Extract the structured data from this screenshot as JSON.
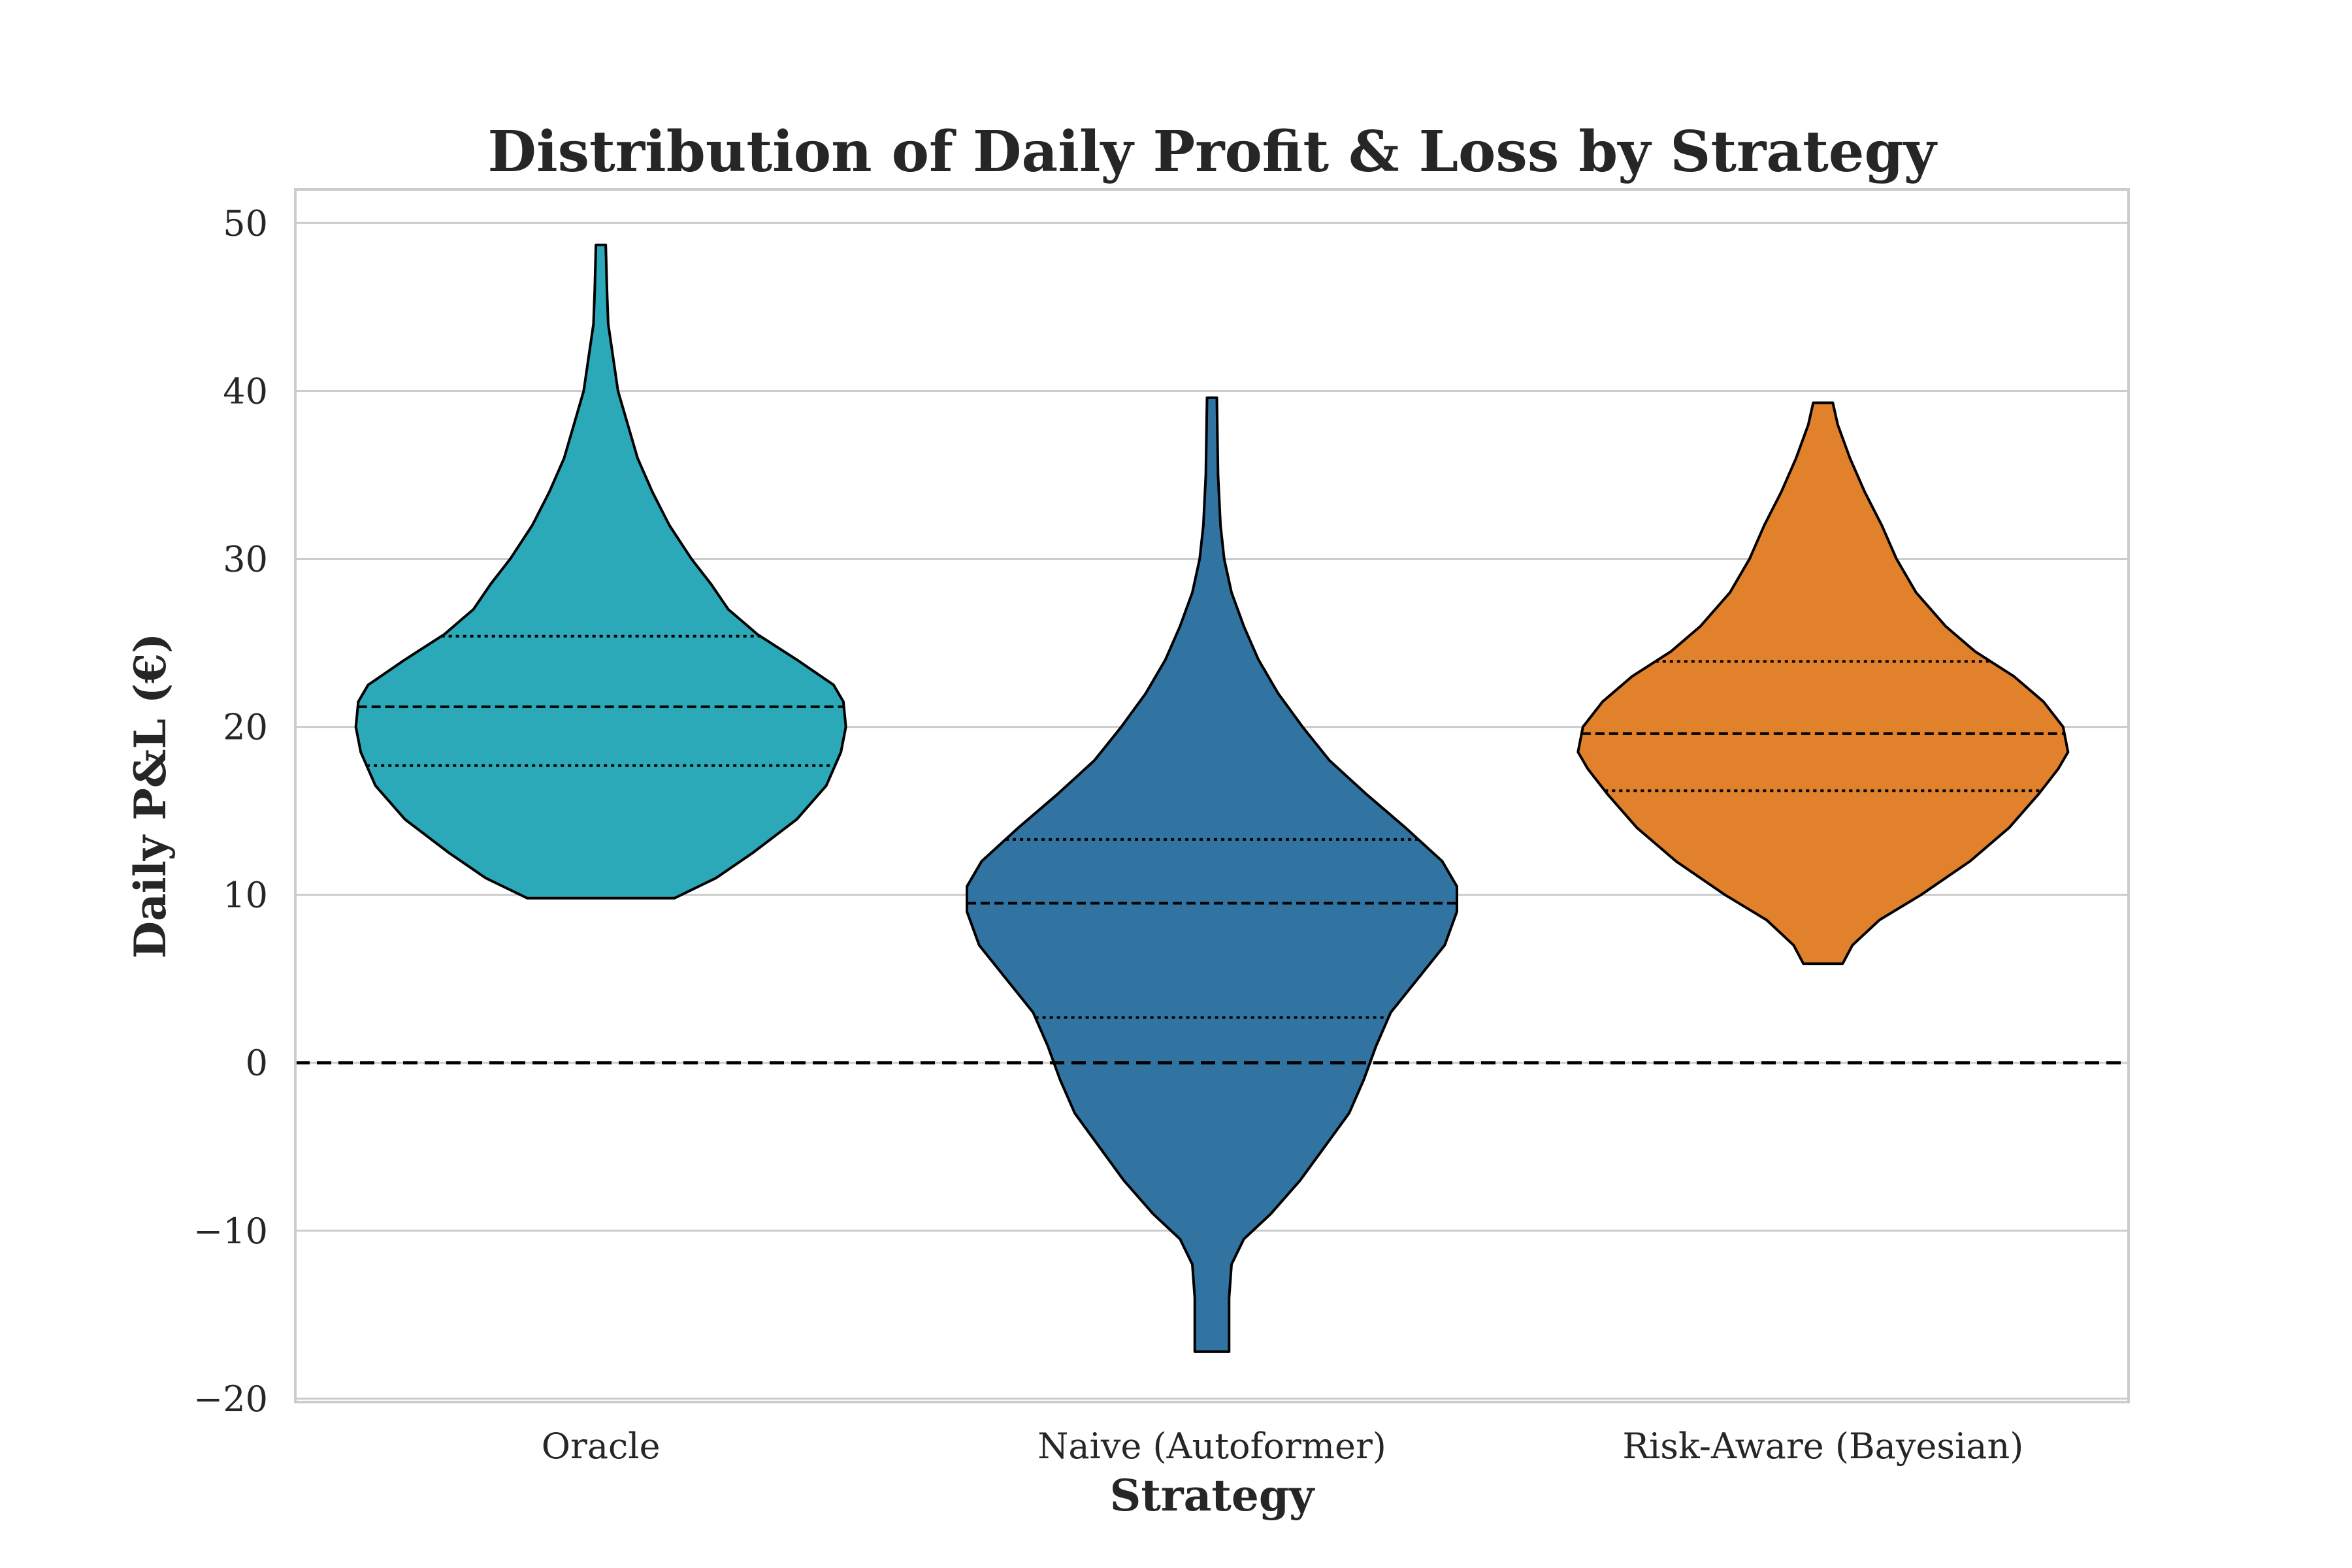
{
  "chart_data": {
    "type": "violin",
    "title": "Distribution of Daily Profit & Loss by Strategy",
    "xlabel": "Strategy",
    "ylabel": "Daily P&L (€)",
    "ylim": [
      -20.2,
      52
    ],
    "yticks": [
      -20,
      -10,
      0,
      10,
      20,
      30,
      40,
      50
    ],
    "ytick_labels": [
      "−20",
      "−10",
      "0",
      "10",
      "20",
      "30",
      "40",
      "50"
    ],
    "grid": "horizontal",
    "reference_line": {
      "y": 0,
      "style": "dashed"
    },
    "categories": [
      "Oracle",
      "Naive (Autoformer)",
      "Risk-Aware (Bayesian)"
    ],
    "colors": [
      "#2ca9b8",
      "#3274a1",
      "#e1812c"
    ],
    "series": [
      {
        "min": 9.8,
        "max": 48.7,
        "q1": 17.7,
        "median": 21.2,
        "q3": 25.4,
        "profile": [
          [
            9.8,
            0.3
          ],
          [
            11,
            0.47
          ],
          [
            12.5,
            0.62
          ],
          [
            14.5,
            0.8
          ],
          [
            16.5,
            0.92
          ],
          [
            18.5,
            0.98
          ],
          [
            20,
            1.0
          ],
          [
            21.5,
            0.99
          ],
          [
            22.5,
            0.95
          ],
          [
            24,
            0.8
          ],
          [
            25.5,
            0.64
          ],
          [
            27,
            0.52
          ],
          [
            28.5,
            0.45
          ],
          [
            30,
            0.37
          ],
          [
            32,
            0.28
          ],
          [
            34,
            0.21
          ],
          [
            36,
            0.15
          ],
          [
            38,
            0.11
          ],
          [
            40,
            0.07
          ],
          [
            42,
            0.05
          ],
          [
            44,
            0.03
          ],
          [
            46,
            0.025
          ],
          [
            48.7,
            0.02
          ]
        ]
      },
      {
        "min": -17.2,
        "max": 39.6,
        "q1": 2.7,
        "median": 9.5,
        "q3": 13.3,
        "profile": [
          [
            -17.2,
            0.07
          ],
          [
            -16,
            0.07
          ],
          [
            -14,
            0.07
          ],
          [
            -12,
            0.08
          ],
          [
            -10.5,
            0.13
          ],
          [
            -9,
            0.24
          ],
          [
            -7,
            0.36
          ],
          [
            -5,
            0.46
          ],
          [
            -3,
            0.56
          ],
          [
            -1,
            0.62
          ],
          [
            1,
            0.67
          ],
          [
            3,
            0.73
          ],
          [
            5,
            0.84
          ],
          [
            7,
            0.95
          ],
          [
            9,
            1.0
          ],
          [
            10.5,
            1.0
          ],
          [
            12,
            0.94
          ],
          [
            14,
            0.79
          ],
          [
            16,
            0.63
          ],
          [
            18,
            0.48
          ],
          [
            20,
            0.37
          ],
          [
            22,
            0.27
          ],
          [
            24,
            0.19
          ],
          [
            26,
            0.13
          ],
          [
            28,
            0.08
          ],
          [
            30,
            0.05
          ],
          [
            32,
            0.035
          ],
          [
            35,
            0.025
          ],
          [
            39.6,
            0.02
          ]
        ]
      },
      {
        "min": 5.9,
        "max": 39.3,
        "q1": 16.2,
        "median": 19.6,
        "q3": 23.9,
        "profile": [
          [
            5.9,
            0.08
          ],
          [
            7,
            0.12
          ],
          [
            8.5,
            0.23
          ],
          [
            10,
            0.4
          ],
          [
            12,
            0.6
          ],
          [
            14,
            0.76
          ],
          [
            16,
            0.88
          ],
          [
            17.5,
            0.96
          ],
          [
            18.5,
            1.0
          ],
          [
            20,
            0.98
          ],
          [
            21.5,
            0.9
          ],
          [
            23,
            0.78
          ],
          [
            24.5,
            0.62
          ],
          [
            26,
            0.5
          ],
          [
            28,
            0.38
          ],
          [
            30,
            0.3
          ],
          [
            32,
            0.24
          ],
          [
            34,
            0.17
          ],
          [
            36,
            0.11
          ],
          [
            38,
            0.06
          ],
          [
            39.3,
            0.04
          ]
        ]
      }
    ]
  }
}
